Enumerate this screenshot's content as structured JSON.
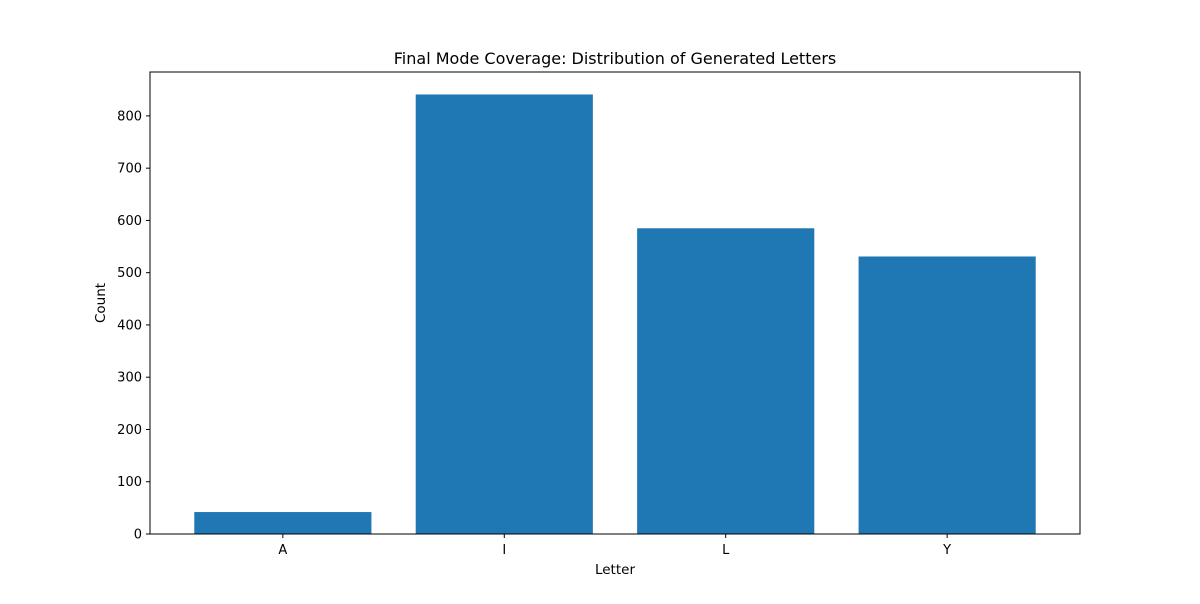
{
  "chart_data": {
    "type": "bar",
    "title": "Final Mode Coverage: Distribution of Generated Letters",
    "xlabel": "Letter",
    "ylabel": "Count",
    "categories": [
      "A",
      "I",
      "L",
      "Y"
    ],
    "values": [
      42,
      841,
      585,
      531
    ],
    "ylim": [
      0,
      884
    ],
    "yticks": [
      0,
      100,
      200,
      300,
      400,
      500,
      600,
      700,
      800
    ],
    "grid": false,
    "legend": "none",
    "bar_color": "#1f77b4"
  }
}
